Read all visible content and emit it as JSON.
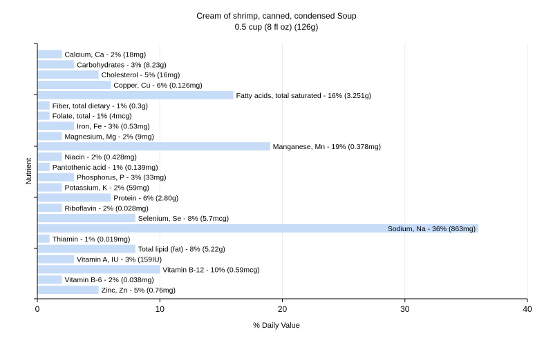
{
  "chart_data": {
    "type": "bar",
    "orientation": "horizontal",
    "title": "Cream of shrimp, canned, condensed Soup",
    "subtitle": "0.5 cup (8 fl oz) (126g)",
    "xlabel": "% Daily Value",
    "ylabel": "Nutrient",
    "xlim": [
      0,
      40
    ],
    "xticks": [
      0,
      10,
      20,
      30,
      40
    ],
    "bar_color": "#c6dcf7",
    "grid": true,
    "categories": [
      "Calcium, Ca",
      "Carbohydrates",
      "Cholesterol",
      "Copper, Cu",
      "Fatty acids, total saturated",
      "Fiber, total dietary",
      "Folate, total",
      "Iron, Fe",
      "Magnesium, Mg",
      "Manganese, Mn",
      "Niacin",
      "Pantothenic acid",
      "Phosphorus, P",
      "Potassium, K",
      "Protein",
      "Riboflavin",
      "Selenium, Se",
      "Sodium, Na",
      "Thiamin",
      "Total lipid (fat)",
      "Vitamin A, IU",
      "Vitamin B-12",
      "Vitamin B-6",
      "Zinc, Zn"
    ],
    "values": [
      2,
      3,
      5,
      6,
      16,
      1,
      1,
      3,
      2,
      19,
      2,
      1,
      3,
      2,
      6,
      2,
      8,
      36,
      1,
      8,
      3,
      10,
      2,
      5
    ],
    "labels": [
      "Calcium, Ca - 2% (18mg)",
      "Carbohydrates - 3% (8.23g)",
      "Cholesterol - 5% (16mg)",
      "Copper, Cu - 6% (0.126mg)",
      "Fatty acids, total saturated - 16% (3.251g)",
      "Fiber, total dietary - 1% (0.3g)",
      "Folate, total - 1% (4mcg)",
      "Iron, Fe - 3% (0.53mg)",
      "Magnesium, Mg - 2% (9mg)",
      "Manganese, Mn - 19% (0.378mg)",
      "Niacin - 2% (0.428mg)",
      "Pantothenic acid - 1% (0.139mg)",
      "Phosphorus, P - 3% (33mg)",
      "Potassium, K - 2% (59mg)",
      "Protein - 6% (2.80g)",
      "Riboflavin - 2% (0.028mg)",
      "Selenium, Se - 8% (5.7mcg)",
      "Sodium, Na - 36% (863mg)",
      "Thiamin - 1% (0.019mg)",
      "Total lipid (fat) - 8% (5.22g)",
      "Vitamin A, IU - 3% (159IU)",
      "Vitamin B-12 - 10% (0.59mcg)",
      "Vitamin B-6 - 2% (0.038mg)",
      "Zinc, Zn - 5% (0.76mg)"
    ]
  }
}
